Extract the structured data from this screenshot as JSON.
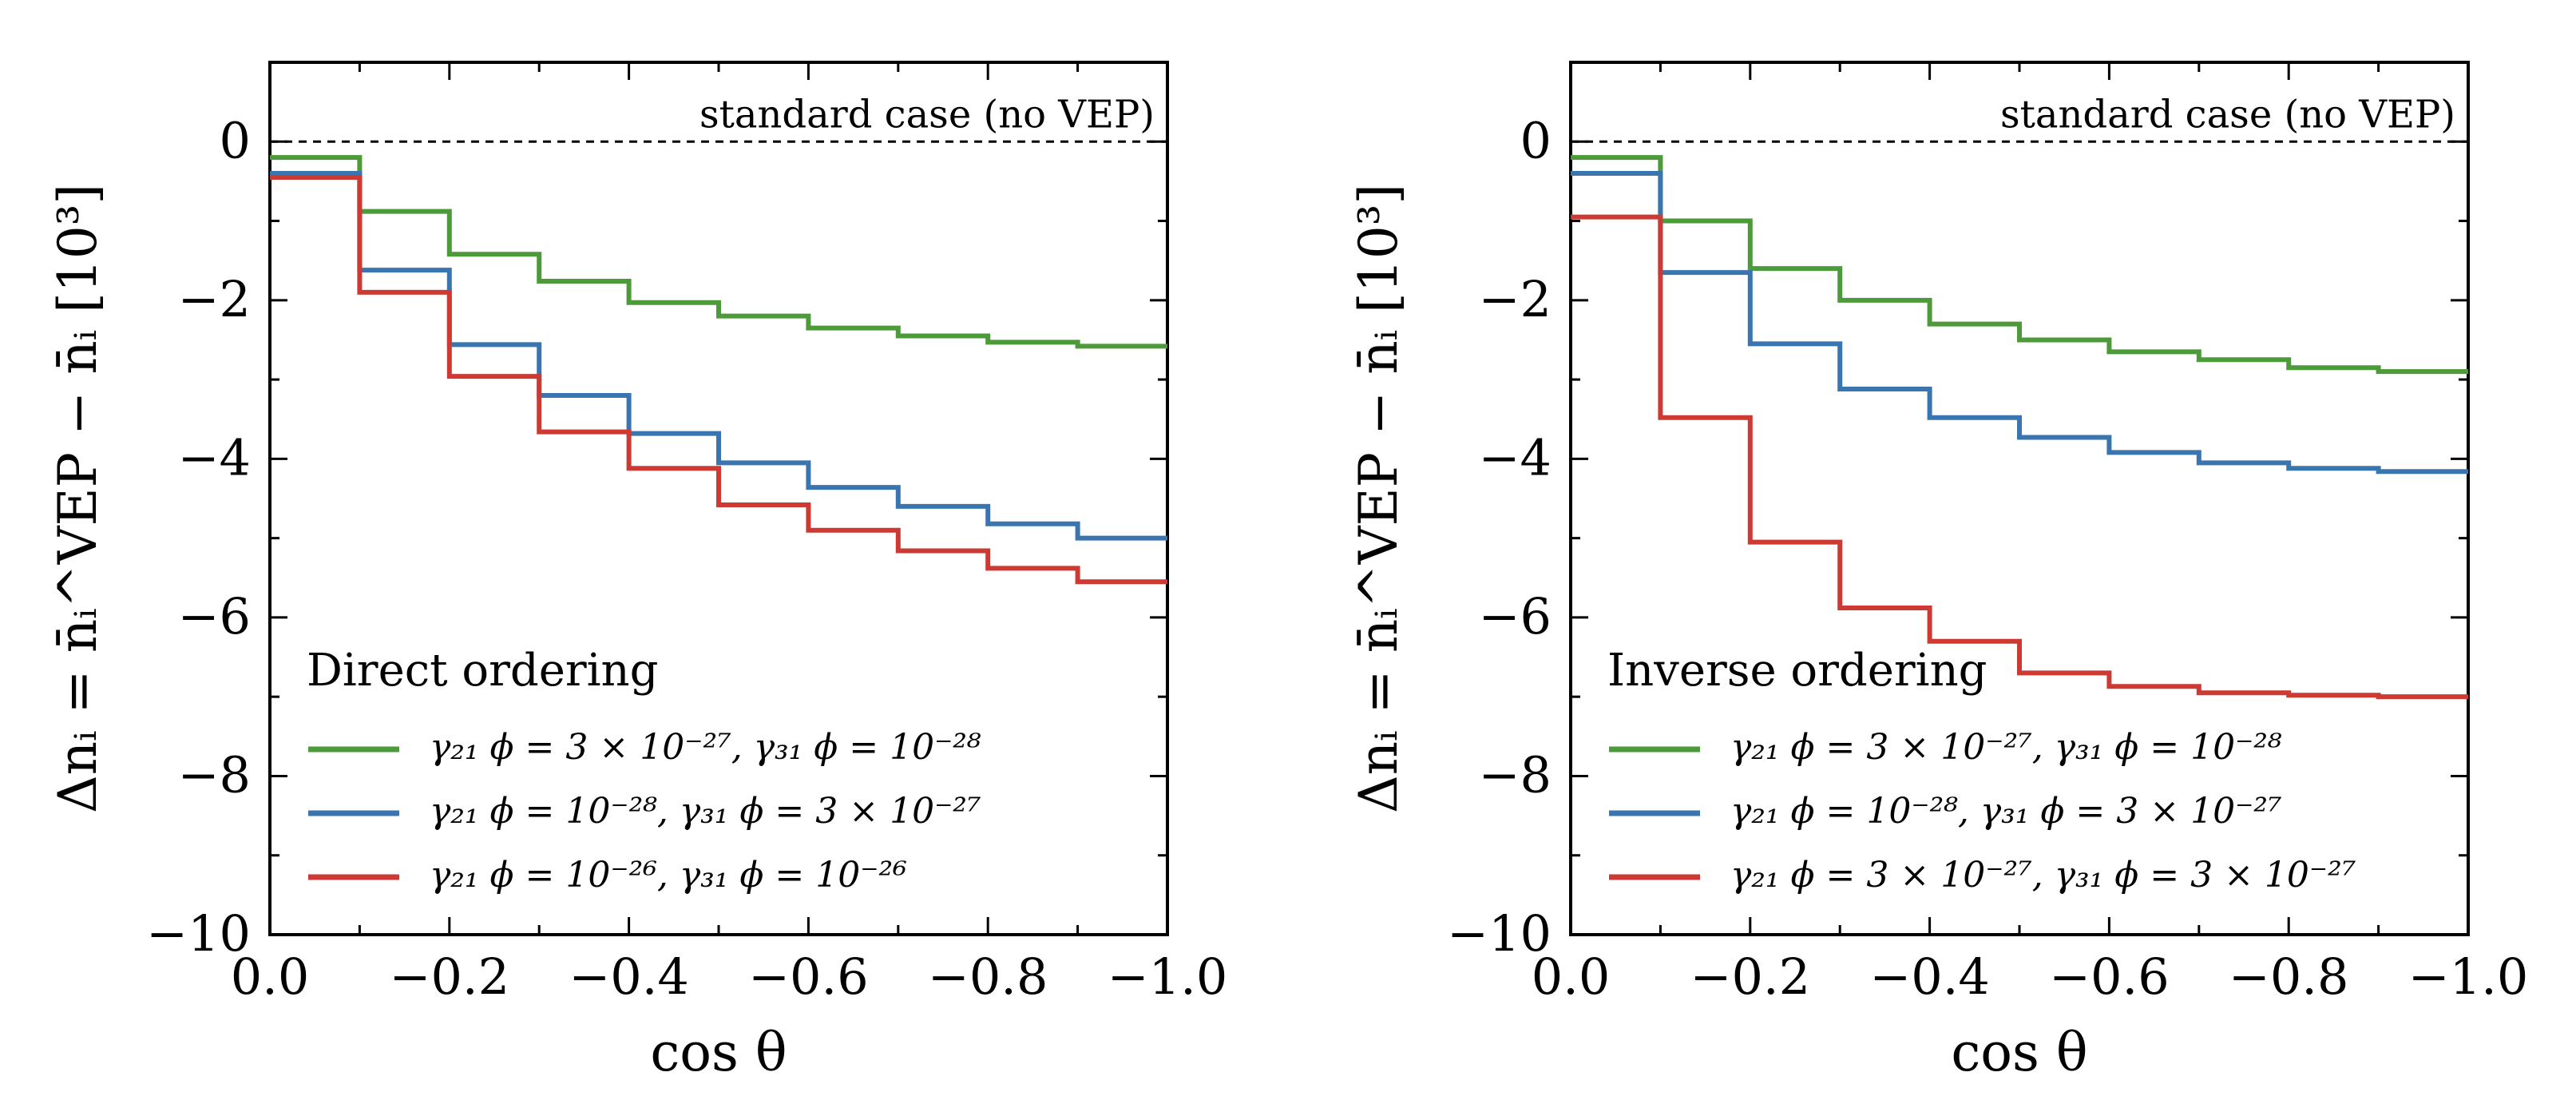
{
  "chart_data": [
    {
      "type": "line",
      "step": "post",
      "title": "",
      "xlabel": "cos θ",
      "ylabel": "Δnᵢ = n̄ᵢ^VEP − n̄ᵢ [10³]",
      "xlim": [
        0.0,
        -1.0
      ],
      "ylim": [
        -10,
        1
      ],
      "grid": false,
      "x_ticks": [
        0.0,
        -0.2,
        -0.4,
        -0.6,
        -0.8,
        -1.0
      ],
      "x_tick_labels": [
        "0.0",
        "−0.2",
        "−0.4",
        "−0.6",
        "−0.8",
        "−1.0"
      ],
      "y_ticks": [
        0,
        -2,
        -4,
        -6,
        -8,
        -10
      ],
      "y_tick_labels": [
        "0",
        "−2",
        "−4",
        "−6",
        "−8",
        "−10"
      ],
      "reference_line": {
        "y": 0,
        "style": "dashed",
        "label": "standard case (no VEP)"
      },
      "legend_title": "Direct ordering",
      "legend_position": "lower-left",
      "bin_edges": [
        0.0,
        -0.1,
        -0.2,
        -0.3,
        -0.4,
        -0.5,
        -0.6,
        -0.7,
        -0.8,
        -0.9,
        -1.0
      ],
      "series": [
        {
          "name": "γ₂₁ ϕ = 3 × 10⁻²⁷, γ₃₁ ϕ = 10⁻²⁸",
          "color": "#4c9a3a",
          "values": [
            -0.2,
            -0.88,
            -1.42,
            -1.76,
            -2.03,
            -2.2,
            -2.35,
            -2.45,
            -2.53,
            -2.58
          ]
        },
        {
          "name": "γ₂₁ ϕ = 10⁻²⁸, γ₃₁ ϕ = 3 × 10⁻²⁷",
          "color": "#3a75b0",
          "values": [
            -0.4,
            -1.62,
            -2.56,
            -3.2,
            -3.68,
            -4.05,
            -4.36,
            -4.6,
            -4.82,
            -5.0
          ]
        },
        {
          "name": "γ₂₁ ϕ = 10⁻²⁶, γ₃₁ ϕ = 10⁻²⁶",
          "color": "#cc3a33",
          "values": [
            -0.45,
            -1.9,
            -2.96,
            -3.66,
            -4.12,
            -4.58,
            -4.9,
            -5.16,
            -5.38,
            -5.55
          ]
        }
      ]
    },
    {
      "type": "line",
      "step": "post",
      "title": "",
      "xlabel": "cos θ",
      "ylabel": "Δnᵢ = n̄ᵢ^VEP − n̄ᵢ [10³]",
      "xlim": [
        0.0,
        -1.0
      ],
      "ylim": [
        -10,
        1
      ],
      "grid": false,
      "x_ticks": [
        0.0,
        -0.2,
        -0.4,
        -0.6,
        -0.8,
        -1.0
      ],
      "x_tick_labels": [
        "0.0",
        "−0.2",
        "−0.4",
        "−0.6",
        "−0.8",
        "−1.0"
      ],
      "y_ticks": [
        0,
        -2,
        -4,
        -6,
        -8,
        -10
      ],
      "y_tick_labels": [
        "0",
        "−2",
        "−4",
        "−6",
        "−8",
        "−10"
      ],
      "reference_line": {
        "y": 0,
        "style": "dashed",
        "label": "standard case (no VEP)"
      },
      "legend_title": "Inverse ordering",
      "legend_position": "lower-left",
      "bin_edges": [
        0.0,
        -0.1,
        -0.2,
        -0.3,
        -0.4,
        -0.5,
        -0.6,
        -0.7,
        -0.8,
        -0.9,
        -1.0
      ],
      "series": [
        {
          "name": "γ₂₁ ϕ = 3 × 10⁻²⁷, γ₃₁ ϕ = 10⁻²⁸",
          "color": "#4c9a3a",
          "values": [
            -0.2,
            -1.0,
            -1.6,
            -2.0,
            -2.3,
            -2.5,
            -2.65,
            -2.75,
            -2.85,
            -2.9
          ]
        },
        {
          "name": "γ₂₁ ϕ = 10⁻²⁸, γ₃₁ ϕ = 3 × 10⁻²⁷",
          "color": "#3a75b0",
          "values": [
            -0.4,
            -1.65,
            -2.55,
            -3.12,
            -3.48,
            -3.73,
            -3.92,
            -4.05,
            -4.12,
            -4.16
          ]
        },
        {
          "name": "γ₂₁ ϕ = 3 × 10⁻²⁷, γ₃₁ ϕ = 3 × 10⁻²⁷",
          "color": "#cc3a33",
          "values": [
            -0.95,
            -3.48,
            -5.05,
            -5.88,
            -6.3,
            -6.7,
            -6.87,
            -6.95,
            -6.98,
            -7.0
          ]
        }
      ]
    }
  ]
}
